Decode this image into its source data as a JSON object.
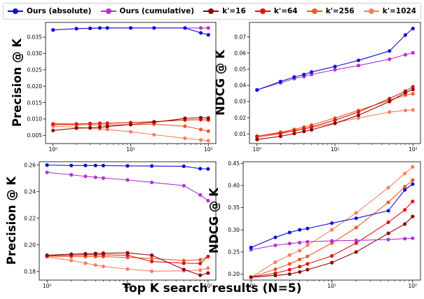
{
  "legend": [
    {
      "name": "Ours (absolute)",
      "color": "#1010d8"
    },
    {
      "name": "Ours (cumulative)",
      "color": "#b432d4"
    },
    {
      "name": "k'=16",
      "color": "#8b0a0a"
    },
    {
      "name": "k'=64",
      "color": "#e0150f"
    },
    {
      "name": "k'=256",
      "color": "#f05a28"
    },
    {
      "name": "k'=1024",
      "color": "#f87e62"
    }
  ],
  "figure": {
    "xlabel": "Top K search results (N=5)"
  },
  "chart_data": [
    {
      "type": "line",
      "ylabel": "Precision @ K",
      "xscale": "log",
      "xlim": [
        0.8,
        125
      ],
      "ylim": [
        0.0025,
        0.0395
      ],
      "xticks": [
        {
          "value": 1,
          "label": "10⁰"
        },
        {
          "value": 10,
          "label": "10¹"
        },
        {
          "value": 100,
          "label": "10²"
        }
      ],
      "yticks": [
        0.005,
        0.01,
        0.015,
        0.02,
        0.025,
        0.03,
        0.035
      ],
      "ytick_labels": [
        "0.005",
        "0.010",
        "0.015",
        "0.020",
        "0.025",
        "0.030",
        "0.035"
      ],
      "x": [
        1,
        2,
        3,
        4,
        5,
        10,
        20,
        50,
        80,
        100
      ],
      "series": [
        {
          "name": "Ours (absolute)",
          "color": "#1010d8",
          "values": [
            0.0372,
            0.0376,
            0.0377,
            0.0378,
            0.0378,
            0.0378,
            0.0378,
            0.0378,
            0.0363,
            0.0357
          ]
        },
        {
          "name": "Ours (cumulative)",
          "color": "#b432d4",
          "values": [
            0.0372,
            0.0376,
            0.0377,
            0.0378,
            0.0378,
            0.0378,
            0.0378,
            0.0378,
            0.0378,
            0.0378
          ]
        },
        {
          "name": "k'=16",
          "color": "#8b0a0a",
          "values": [
            0.0065,
            0.0072,
            0.0073,
            0.0075,
            0.0077,
            0.0083,
            0.009,
            0.0102,
            0.0104,
            0.0103
          ]
        },
        {
          "name": "k'=64",
          "color": "#e0150f",
          "values": [
            0.0085,
            0.0085,
            0.0086,
            0.0087,
            0.0087,
            0.0089,
            0.0092,
            0.0097,
            0.0098,
            0.0097
          ]
        },
        {
          "name": "k'=256",
          "color": "#f05a28",
          "values": [
            0.0083,
            0.0082,
            0.0082,
            0.0082,
            0.0082,
            0.0083,
            0.0084,
            0.0078,
            0.0068,
            0.0063
          ]
        },
        {
          "name": "k'=1024",
          "color": "#f87e62",
          "values": [
            0.0078,
            0.0075,
            0.0072,
            0.007,
            0.0068,
            0.0061,
            0.0052,
            0.0041,
            0.0036,
            0.0034
          ]
        }
      ]
    },
    {
      "type": "line",
      "ylabel": "NDCG @ K",
      "xscale": "log",
      "xlim": [
        0.8,
        125
      ],
      "ylim": [
        0.004,
        0.079
      ],
      "xticks": [
        {
          "value": 1,
          "label": "10⁰"
        },
        {
          "value": 10,
          "label": "10¹"
        },
        {
          "value": 100,
          "label": "10²"
        }
      ],
      "yticks": [
        0.01,
        0.02,
        0.03,
        0.04,
        0.05,
        0.06,
        0.07
      ],
      "ytick_labels": [
        "0.01",
        "0.02",
        "0.03",
        "0.04",
        "0.05",
        "0.06",
        "0.07"
      ],
      "x": [
        1,
        2,
        3,
        4,
        5,
        10,
        20,
        50,
        80,
        100
      ],
      "series": [
        {
          "name": "Ours (absolute)",
          "color": "#1010d8",
          "values": [
            0.0372,
            0.0424,
            0.0452,
            0.0467,
            0.0483,
            0.0517,
            0.0555,
            0.0613,
            0.0712,
            0.0752
          ]
        },
        {
          "name": "Ours (cumulative)",
          "color": "#b432d4",
          "values": [
            0.0372,
            0.0416,
            0.0442,
            0.0455,
            0.0468,
            0.0497,
            0.0523,
            0.0562,
            0.059,
            0.0602
          ]
        },
        {
          "name": "k'=16",
          "color": "#8b0a0a",
          "values": [
            0.0065,
            0.0085,
            0.0102,
            0.0115,
            0.0125,
            0.0165,
            0.0215,
            0.03,
            0.0355,
            0.0375
          ]
        },
        {
          "name": "k'=64",
          "color": "#e0150f",
          "values": [
            0.0085,
            0.0105,
            0.012,
            0.0132,
            0.0143,
            0.0185,
            0.0235,
            0.0318,
            0.0365,
            0.0392
          ]
        },
        {
          "name": "k'=256",
          "color": "#f05a28",
          "values": [
            0.0085,
            0.011,
            0.0128,
            0.0142,
            0.0155,
            0.0198,
            0.0245,
            0.0308,
            0.034,
            0.0348
          ]
        },
        {
          "name": "k'=1024",
          "color": "#f87e62",
          "values": [
            0.0078,
            0.01,
            0.0118,
            0.013,
            0.014,
            0.0168,
            0.0198,
            0.0235,
            0.0245,
            0.0248
          ]
        }
      ]
    },
    {
      "type": "line",
      "ylabel": "Precision @ K",
      "xscale": "log",
      "xlim": [
        0.8,
        125
      ],
      "ylim": [
        0.1735,
        0.2625
      ],
      "xticks": [
        {
          "value": 1,
          "label": "10⁰"
        },
        {
          "value": 10,
          "label": "10¹"
        },
        {
          "value": 100,
          "label": "10²"
        }
      ],
      "yticks": [
        0.18,
        0.2,
        0.22,
        0.24,
        0.26
      ],
      "ytick_labels": [
        "0.18",
        "0.20",
        "0.22",
        "0.24",
        "0.26"
      ],
      "x": [
        1,
        2,
        3,
        4,
        5,
        10,
        20,
        50,
        80,
        100
      ],
      "series": [
        {
          "name": "Ours (absolute)",
          "color": "#1010d8",
          "values": [
            0.26,
            0.2597,
            0.2597,
            0.2597,
            0.2596,
            0.2594,
            0.2593,
            0.2591,
            0.2573,
            0.2571
          ]
        },
        {
          "name": "Ours (cumulative)",
          "color": "#b432d4",
          "values": [
            0.2545,
            0.2527,
            0.2515,
            0.2508,
            0.2502,
            0.2488,
            0.247,
            0.2445,
            0.2375,
            0.2332
          ]
        },
        {
          "name": "k'=16",
          "color": "#8b0a0a",
          "values": [
            0.1922,
            0.193,
            0.1933,
            0.1935,
            0.1937,
            0.194,
            0.1922,
            0.1815,
            0.1772,
            0.1788
          ]
        },
        {
          "name": "k'=64",
          "color": "#e0150f",
          "values": [
            0.1918,
            0.1922,
            0.1925,
            0.1925,
            0.1925,
            0.1922,
            0.1875,
            0.1862,
            0.186,
            0.1912
          ]
        },
        {
          "name": "k'=256",
          "color": "#f05a28",
          "values": [
            0.1915,
            0.1912,
            0.1912,
            0.1912,
            0.1912,
            0.1905,
            0.1898,
            0.1882,
            0.1888,
            0.1912
          ]
        },
        {
          "name": "k'=1024",
          "color": "#f87e62",
          "values": [
            0.191,
            0.1882,
            0.1862,
            0.1848,
            0.1838,
            0.1818,
            0.1802,
            0.1805,
            0.181,
            0.1825
          ]
        }
      ]
    },
    {
      "type": "line",
      "ylabel": "NDCG @ K",
      "xscale": "log",
      "xlim": [
        0.8,
        125
      ],
      "ylim": [
        0.1865,
        0.4535
      ],
      "xticks": [
        {
          "value": 1,
          "label": "10⁰"
        },
        {
          "value": 10,
          "label": "10¹"
        },
        {
          "value": 100,
          "label": "10²"
        }
      ],
      "yticks": [
        0.2,
        0.25,
        0.3,
        0.35,
        0.4,
        0.45
      ],
      "ytick_labels": [
        "0.20",
        "0.25",
        "0.30",
        "0.35",
        "0.40",
        "0.45"
      ],
      "x": [
        1,
        2,
        3,
        4,
        5,
        10,
        20,
        50,
        80,
        100
      ],
      "series": [
        {
          "name": "Ours (absolute)",
          "color": "#1010d8",
          "values": [
            0.26,
            0.283,
            0.294,
            0.3,
            0.303,
            0.315,
            0.326,
            0.343,
            0.39,
            0.403
          ]
        },
        {
          "name": "Ours (cumulative)",
          "color": "#b432d4",
          "values": [
            0.255,
            0.265,
            0.269,
            0.271,
            0.273,
            0.275,
            0.276,
            0.278,
            0.28,
            0.281
          ]
        },
        {
          "name": "k'=16",
          "color": "#8b0a0a",
          "values": [
            0.193,
            0.197,
            0.2,
            0.205,
            0.21,
            0.226,
            0.25,
            0.292,
            0.313,
            0.33
          ]
        },
        {
          "name": "k'=64",
          "color": "#e0150f",
          "values": [
            0.193,
            0.202,
            0.21,
            0.217,
            0.223,
            0.241,
            0.27,
            0.317,
            0.345,
            0.364
          ]
        },
        {
          "name": "k'=256",
          "color": "#f05a28",
          "values": [
            0.193,
            0.211,
            0.223,
            0.233,
            0.24,
            0.27,
            0.305,
            0.362,
            0.397,
            0.412
          ]
        },
        {
          "name": "k'=1024",
          "color": "#f87e62",
          "values": [
            0.193,
            0.227,
            0.243,
            0.253,
            0.265,
            0.3,
            0.338,
            0.395,
            0.427,
            0.442
          ]
        }
      ]
    }
  ]
}
